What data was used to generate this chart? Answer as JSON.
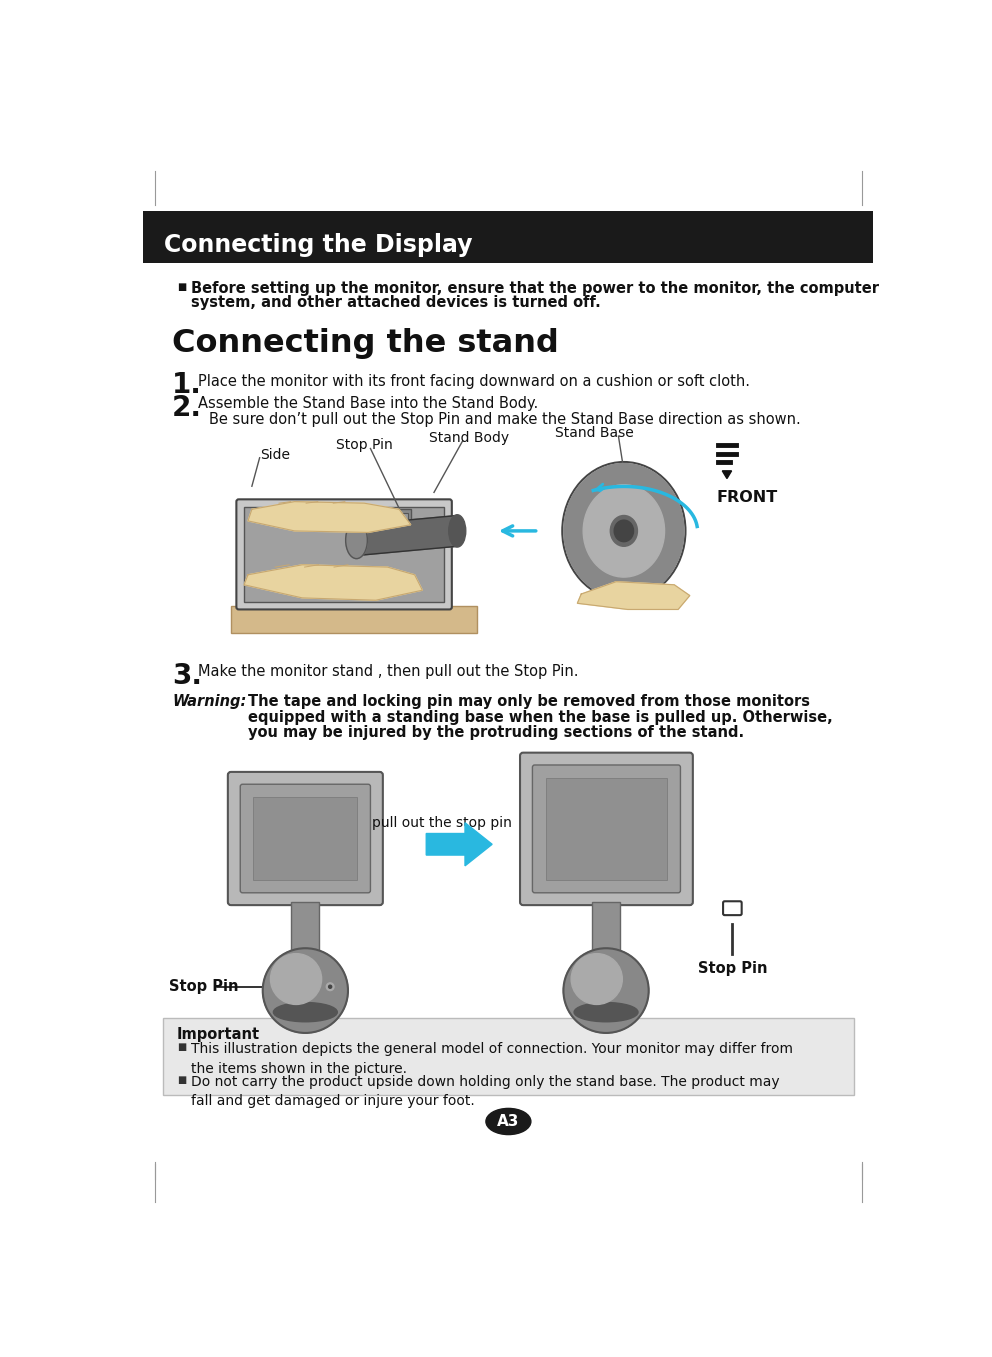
{
  "page_bg": "#ffffff",
  "header_bg": "#1a1a1a",
  "header_text": "Connecting the Display",
  "header_text_color": "#ffffff",
  "important_bg": "#e8e8e8",
  "important_title": "Important",
  "important_bullets": [
    "This illustration depicts the general model of connection. Your monitor may differ from\nthe items shown in the picture.",
    "Do not carry the product upside down holding only the stand base. The product may\nfall and get damaged or injure your foot."
  ],
  "bullet_bold_text1": "Before setting up the monitor, ensure that the power to the monitor, the computer",
  "bullet_bold_text2": "system, and other attached devices is turned off.",
  "section_title": "Connecting the stand",
  "step1_num": "1.",
  "step1_text": "Place the monitor with its front facing downward on a cushion or soft cloth.",
  "step2_num": "2.",
  "step2_text": "Assemble the Stand Base into the Stand Body.",
  "step2_sub": "Be sure don’t pull out the Stop Pin and make the Stand Base direction as shown.",
  "step3_num": "3.",
  "step3_text": "Make the monitor stand , then pull out the Stop Pin.",
  "warning_label": "Warning:",
  "warning_line1": "The tape and locking pin may only be removed from those monitors",
  "warning_line2": "equipped with a standing base when the base is pulled up. Otherwise,",
  "warning_line3": "you may be injured by the protruding sections of the stand.",
  "label_stand_base": "Stand Base",
  "label_stand_body": "Stand Body",
  "label_side": "Side",
  "label_stop_pin": "Stop Pin",
  "label_front": "FRONT",
  "label_stop_pin2": "Stop Pin",
  "label_stop_pin3": "Stop Pin",
  "label_pull_out": "pull out the stop pin",
  "page_num": "A3",
  "accent_blue": "#29b8e0"
}
